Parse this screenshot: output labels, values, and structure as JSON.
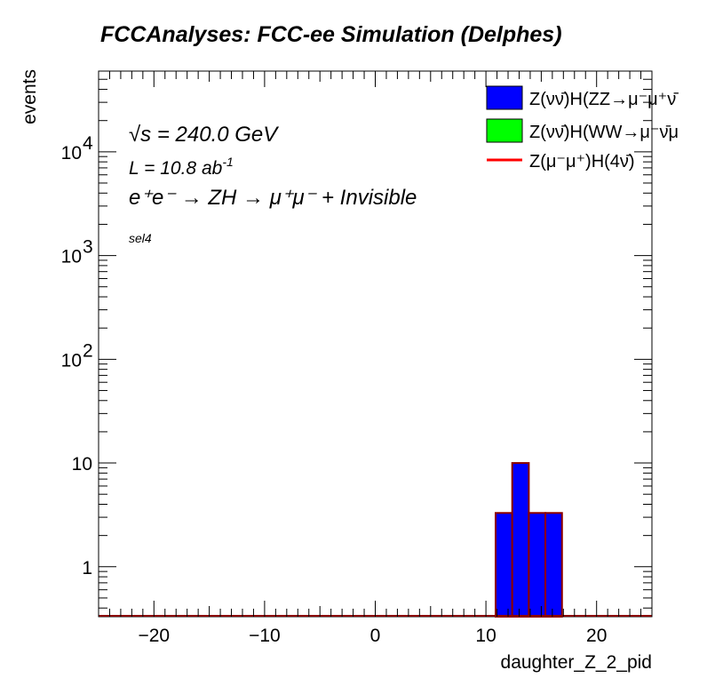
{
  "chart_data": {
    "type": "bar",
    "title": "FCCAnalyses: FCC-ee Simulation (Delphes)",
    "xlabel": "daughter_Z_2_pid",
    "ylabel": "events",
    "xlim": [
      -25,
      25
    ],
    "ylim": [
      0.33,
      60000
    ],
    "yscale": "log",
    "xticks": [
      -20,
      -10,
      0,
      10,
      20
    ],
    "xtick_labels": [
      "−20",
      "−10",
      "0",
      "10",
      "20"
    ],
    "yticks": [
      1,
      10,
      100,
      1000,
      10000
    ],
    "ytick_labels": [
      {
        "base": "1",
        "exp": ""
      },
      {
        "base": "10",
        "exp": ""
      },
      {
        "base": "10",
        "exp": "2"
      },
      {
        "base": "10",
        "exp": "3"
      },
      {
        "base": "10",
        "exp": "4"
      }
    ],
    "annotations": {
      "sqrt_s": "√s = 240.0 GeV",
      "lumi_text": "L = 10.8 ab",
      "lumi_exp": "-1",
      "process": "e⁺e⁻ → ZH → μ⁺μ⁻ + Invisible",
      "selection": "sel4"
    },
    "bin_width": 1.5,
    "series": [
      {
        "name": "Z(νν̄)H(ZZ→μ⁻μ⁺ν̄",
        "style": "filled",
        "color": "#0000ff",
        "edge_color": "#8b0000",
        "bins": [
          {
            "x": 11.625,
            "y": 3.3
          },
          {
            "x": 13.125,
            "y": 10.0
          },
          {
            "x": 14.625,
            "y": 3.3
          },
          {
            "x": 16.125,
            "y": 3.3
          }
        ]
      },
      {
        "name": "Z(νν̄)H(WW→μ⁻ν̄μ",
        "style": "filled",
        "color": "#00ff00",
        "bins": []
      },
      {
        "name": "Z(μ⁻μ⁺)H(4ν̄)",
        "style": "line",
        "color": "#ff0000",
        "bins": []
      }
    ],
    "legend_position": "top-right",
    "grid": false
  }
}
